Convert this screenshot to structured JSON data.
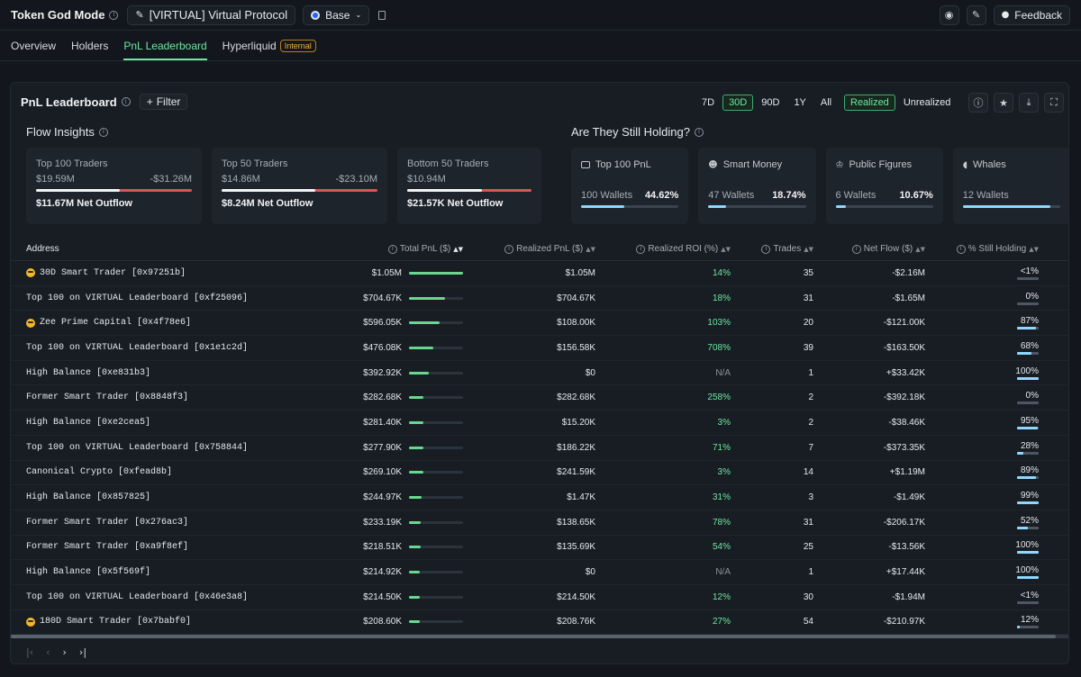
{
  "header": {
    "title": "Token God Mode",
    "token": "[VIRTUAL] Virtual Protocol",
    "chain": "Base",
    "feedback": "Feedback"
  },
  "tabs": [
    {
      "label": "Overview"
    },
    {
      "label": "Holders"
    },
    {
      "label": "PnL Leaderboard"
    },
    {
      "label": "Hyperliquid"
    }
  ],
  "internal_badge": "Internal",
  "panel": {
    "title": "PnL Leaderboard",
    "filter": "Filter",
    "ranges": [
      "7D",
      "30D",
      "90D",
      "1Y",
      "All"
    ],
    "modes": [
      "Realized",
      "Unrealized"
    ]
  },
  "flow": {
    "title": "Flow Insights",
    "cards": [
      {
        "label": "Top 100 Traders",
        "inflow": "$19.59M",
        "outflow": "-$31.26M",
        "net": "$11.67M Net Outflow"
      },
      {
        "label": "Top 50 Traders",
        "inflow": "$14.86M",
        "outflow": "-$23.10M",
        "net": "$8.24M Net Outflow"
      },
      {
        "label": "Bottom 50 Traders",
        "inflow": "$10.94M",
        "outflow": "",
        "net": "$21.57K Net Outflow"
      }
    ]
  },
  "holding": {
    "title": "Are They Still Holding?",
    "cards": [
      {
        "label": "Top 100 PnL",
        "wallets": "100 Wallets",
        "pct": "44.62%",
        "fill": 0.446
      },
      {
        "label": "Smart Money",
        "wallets": "47 Wallets",
        "pct": "18.74%",
        "fill": 0.187
      },
      {
        "label": "Public Figures",
        "wallets": "6 Wallets",
        "pct": "10.67%",
        "fill": 0.107
      },
      {
        "label": "Whales",
        "wallets": "12 Wallets",
        "pct": "",
        "fill": 0.9
      }
    ]
  },
  "table": {
    "headers": {
      "address": "Address",
      "total": "Total PnL ($)",
      "realized": "Realized PnL ($)",
      "roi": "Realized ROI (%)",
      "trades": "Trades",
      "net": "Net Flow ($)",
      "hold": "% Still Holding"
    },
    "rows": [
      {
        "addr": "30D Smart Trader [0x97251b]",
        "emoji": true,
        "total": "$1.05M",
        "total_frac": 1.0,
        "realized": "$1.05M",
        "roi": "14%",
        "trades": "35",
        "net": "-$2.16M",
        "hold": "<1%",
        "hold_frac": 0.0
      },
      {
        "addr": "Top 100 on VIRTUAL Leaderboard [0xf25096]",
        "emoji": false,
        "total": "$704.67K",
        "total_frac": 0.67,
        "realized": "$704.67K",
        "roi": "18%",
        "trades": "31",
        "net": "-$1.65M",
        "hold": "0%",
        "hold_frac": 0.0
      },
      {
        "addr": "Zee Prime Capital [0x4f78e6]",
        "emoji": true,
        "total": "$596.05K",
        "total_frac": 0.57,
        "realized": "$108.00K",
        "roi": "103%",
        "trades": "20",
        "net": "-$121.00K",
        "hold": "87%",
        "hold_frac": 0.87
      },
      {
        "addr": "Top 100 on VIRTUAL Leaderboard [0x1e1c2d]",
        "emoji": false,
        "total": "$476.08K",
        "total_frac": 0.45,
        "realized": "$156.58K",
        "roi": "708%",
        "trades": "39",
        "net": "-$163.50K",
        "hold": "68%",
        "hold_frac": 0.68
      },
      {
        "addr": "High Balance [0xe831b3]",
        "emoji": false,
        "total": "$392.92K",
        "total_frac": 0.37,
        "realized": "$0",
        "roi": "N/A",
        "trades": "1",
        "net": "+$33.42K",
        "hold": "100%",
        "hold_frac": 1.0
      },
      {
        "addr": "Former Smart Trader [0x8848f3]",
        "emoji": false,
        "total": "$282.68K",
        "total_frac": 0.27,
        "realized": "$282.68K",
        "roi": "258%",
        "trades": "2",
        "net": "-$392.18K",
        "hold": "0%",
        "hold_frac": 0.0
      },
      {
        "addr": "High Balance [0xe2cea5]",
        "emoji": false,
        "total": "$281.40K",
        "total_frac": 0.27,
        "realized": "$15.20K",
        "roi": "3%",
        "trades": "2",
        "net": "-$38.46K",
        "hold": "95%",
        "hold_frac": 0.95
      },
      {
        "addr": "Top 100 on VIRTUAL Leaderboard [0x758844]",
        "emoji": false,
        "total": "$277.90K",
        "total_frac": 0.26,
        "realized": "$186.22K",
        "roi": "71%",
        "trades": "7",
        "net": "-$373.35K",
        "hold": "28%",
        "hold_frac": 0.28
      },
      {
        "addr": "Canonical Crypto [0xfead8b]",
        "emoji": false,
        "total": "$269.10K",
        "total_frac": 0.26,
        "realized": "$241.59K",
        "roi": "3%",
        "trades": "14",
        "net": "+$1.19M",
        "hold": "89%",
        "hold_frac": 0.89
      },
      {
        "addr": "High Balance [0x857825]",
        "emoji": false,
        "total": "$244.97K",
        "total_frac": 0.23,
        "realized": "$1.47K",
        "roi": "31%",
        "trades": "3",
        "net": "-$1.49K",
        "hold": "99%",
        "hold_frac": 0.99
      },
      {
        "addr": "Former Smart Trader [0x276ac3]",
        "emoji": false,
        "total": "$233.19K",
        "total_frac": 0.22,
        "realized": "$138.65K",
        "roi": "78%",
        "trades": "31",
        "net": "-$206.17K",
        "hold": "52%",
        "hold_frac": 0.52
      },
      {
        "addr": "Former Smart Trader [0xa9f8ef]",
        "emoji": false,
        "total": "$218.51K",
        "total_frac": 0.21,
        "realized": "$135.69K",
        "roi": "54%",
        "trades": "25",
        "net": "-$13.56K",
        "hold": "100%",
        "hold_frac": 1.0
      },
      {
        "addr": "High Balance [0x5f569f]",
        "emoji": false,
        "total": "$214.92K",
        "total_frac": 0.2,
        "realized": "$0",
        "roi": "N/A",
        "trades": "1",
        "net": "+$17.44K",
        "hold": "100%",
        "hold_frac": 1.0
      },
      {
        "addr": "Top 100 on VIRTUAL Leaderboard [0x46e3a8]",
        "emoji": false,
        "total": "$214.50K",
        "total_frac": 0.2,
        "realized": "$214.50K",
        "roi": "12%",
        "trades": "30",
        "net": "-$1.94M",
        "hold": "<1%",
        "hold_frac": 0.0
      },
      {
        "addr": "180D Smart Trader [0x7babf0]",
        "emoji": true,
        "total": "$208.60K",
        "total_frac": 0.2,
        "realized": "$208.76K",
        "roi": "27%",
        "trades": "54",
        "net": "-$210.97K",
        "hold": "12%",
        "hold_frac": 0.12
      }
    ]
  },
  "colors": {
    "accent": "#6ee7a0",
    "hold_bar": "#8ed8ff",
    "outflow": "#d95454"
  }
}
